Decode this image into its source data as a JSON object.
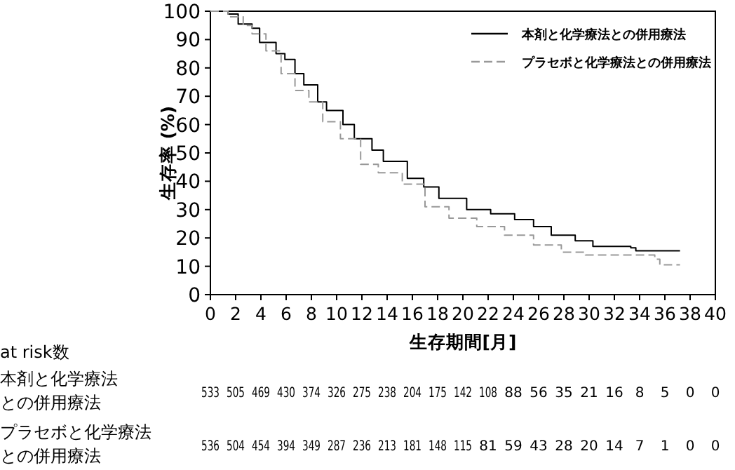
{
  "chart_data": {
    "type": "step",
    "xlabel": "生存期間[月]",
    "ylabel": "生存率 (%)",
    "xlim": [
      0,
      40
    ],
    "xticks": [
      0,
      2,
      4,
      6,
      8,
      10,
      12,
      14,
      16,
      18,
      20,
      22,
      24,
      26,
      28,
      30,
      32,
      34,
      36,
      38,
      40
    ],
    "ylim": [
      0,
      100
    ],
    "yticks": [
      0,
      10,
      20,
      30,
      40,
      50,
      60,
      70,
      80,
      90,
      100
    ],
    "grid": false,
    "legend": "top right",
    "series": [
      {
        "name": "本剤と化学療法との併用療法",
        "color": "#000000",
        "line_style": "solid",
        "x": [
          0,
          1.4,
          2.2,
          3.3,
          3.9,
          5.2,
          5.9,
          6.7,
          7.4,
          8.5,
          9.2,
          10.5,
          11.4,
          12.8,
          13.7,
          15.6,
          16.9,
          18.1,
          20.3,
          22.2,
          24.1,
          24.8,
          25.6,
          27,
          28.9,
          30.3,
          33.3,
          33.7,
          37.2
        ],
        "values": [
          100,
          99,
          95.5,
          94,
          89,
          85,
          83,
          78,
          74,
          68,
          65,
          60,
          55,
          51,
          47,
          41,
          38,
          34,
          30,
          28.5,
          26.5,
          26.5,
          24,
          21,
          19,
          17,
          16.5,
          15.5,
          15.5
        ]
      },
      {
        "name": "プラセボと化学療法との併用療法",
        "color": "#999999",
        "line_style": "dashed",
        "x": [
          0,
          1.4,
          2.6,
          3.3,
          4.4,
          5.6,
          6.7,
          7.8,
          8.9,
          10.3,
          11.9,
          13.3,
          15.2,
          17,
          18.9,
          21.1,
          23.3,
          25.6,
          27.8,
          29.7,
          33.7,
          35.2,
          35.6,
          37.2
        ],
        "values": [
          100,
          98,
          95,
          92,
          86,
          78,
          72,
          68,
          61,
          55,
          46,
          43,
          39,
          31,
          27,
          24,
          21,
          17.5,
          15,
          14,
          14,
          12.5,
          10.5,
          10.5
        ]
      }
    ],
    "annotations": [
      "at risk数",
      "本剤と化学療法との併用療法",
      "533",
      "505",
      "469",
      "430",
      "374",
      "326",
      "275",
      "238",
      "204",
      "175",
      "142",
      "108",
      "88",
      "56",
      "35",
      "21",
      "16",
      "8",
      "5",
      "0",
      "0",
      "プラセボと化学療法との併用療法",
      "536",
      "504",
      "454",
      "394",
      "349",
      "287",
      "236",
      "213",
      "181",
      "148",
      "115",
      "81",
      "59",
      "43",
      "28",
      "20",
      "14",
      "7",
      "1",
      "0",
      "0"
    ]
  }
}
